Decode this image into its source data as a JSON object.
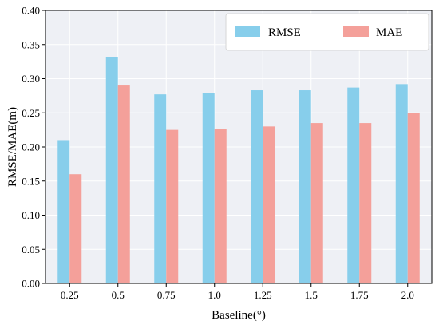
{
  "chart_data": {
    "type": "bar",
    "categories": [
      "0.25",
      "0.5",
      "0.75",
      "1.0",
      "1.25",
      "1.5",
      "1.75",
      "2.0"
    ],
    "series": [
      {
        "name": "RMSE",
        "color": "#87CEEB",
        "values": [
          0.21,
          0.332,
          0.277,
          0.279,
          0.283,
          0.283,
          0.287,
          0.292
        ]
      },
      {
        "name": "MAE",
        "color": "#F4A09A",
        "values": [
          0.16,
          0.29,
          0.225,
          0.226,
          0.23,
          0.235,
          0.235,
          0.25
        ]
      }
    ],
    "title": "",
    "xlabel": "Baseline(°)",
    "ylabel": "RMSE/MAE(m)",
    "ylim": [
      0,
      0.4
    ],
    "yticks": [
      "0.00",
      "0.05",
      "0.10",
      "0.15",
      "0.20",
      "0.25",
      "0.30",
      "0.35",
      "0.40"
    ],
    "grid": true,
    "legend_position": "top-right",
    "background_color": "#EEF0F5"
  }
}
